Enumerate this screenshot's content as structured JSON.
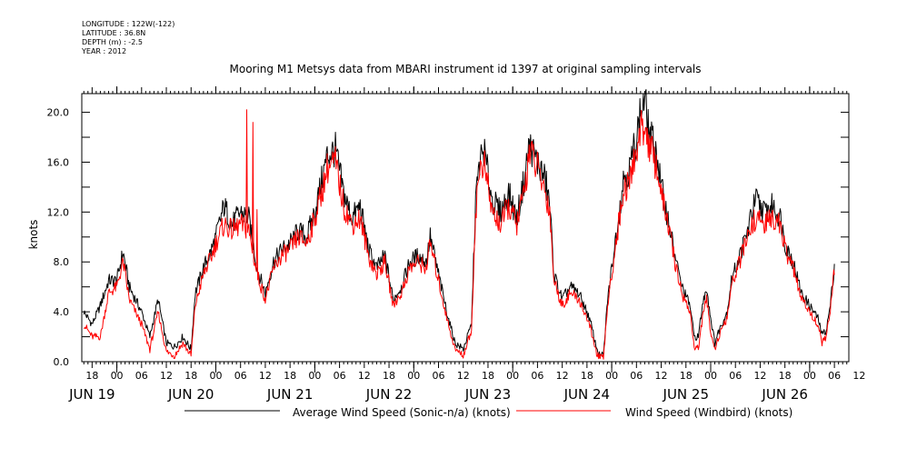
{
  "header": {
    "longitude": "LONGITUDE : 122W(-122)",
    "latitude": "LATITUDE : 36.8N",
    "depth": "DEPTH (m) : -2.5",
    "year": "YEAR : 2012"
  },
  "chart_data": {
    "type": "line",
    "title": "Mooring M1 Metsys data from MBARI instrument id 1397 at original sampling intervals",
    "ylabel": "knots",
    "xlabel": "",
    "ylim": [
      0,
      21.5
    ],
    "yticks": [
      "0.0",
      "4.0",
      "8.0",
      "12.0",
      "16.0",
      "20.0"
    ],
    "xrange_hours": [
      -8.5,
      177.5
    ],
    "x_unit": "hours from JUN 19 00:00",
    "hour_ticks": [
      "18",
      "00",
      "06",
      "12",
      "18",
      "00",
      "06",
      "12",
      "18",
      "00",
      "06",
      "12",
      "18",
      "00",
      "06",
      "12",
      "18",
      "00",
      "06",
      "12",
      "18",
      "00",
      "06",
      "12",
      "18",
      "00",
      "06",
      "12",
      "18",
      "00",
      "06",
      "12"
    ],
    "day_labels": [
      "JUN 19",
      "JUN 20",
      "JUN 21",
      "JUN 22",
      "JUN 23",
      "JUN 24",
      "JUN 25",
      "JUN 26"
    ],
    "grid": false,
    "legend_position": "bottom",
    "series": [
      {
        "name": "Average Wind Speed (Sonic-n/a) (knots)",
        "color": "#000000",
        "keypoints": [
          [
            -8,
            4
          ],
          [
            -6,
            3
          ],
          [
            -4,
            4.5
          ],
          [
            -2,
            6.5
          ],
          [
            0,
            6.5
          ],
          [
            1.5,
            8.8
          ],
          [
            3,
            6
          ],
          [
            6,
            4
          ],
          [
            8,
            2
          ],
          [
            10,
            5
          ],
          [
            12,
            1.5
          ],
          [
            14,
            1.2
          ],
          [
            16,
            2
          ],
          [
            18,
            1
          ],
          [
            19,
            5.5
          ],
          [
            21,
            7.5
          ],
          [
            23,
            9
          ],
          [
            24,
            10
          ],
          [
            26,
            12.5
          ],
          [
            28,
            11
          ],
          [
            30,
            12
          ],
          [
            32,
            11.5
          ],
          [
            34,
            7.5
          ],
          [
            36,
            5.5
          ],
          [
            38,
            8
          ],
          [
            40,
            9
          ],
          [
            42,
            9.5
          ],
          [
            44,
            10.5
          ],
          [
            46,
            10
          ],
          [
            48,
            12
          ],
          [
            50,
            15
          ],
          [
            51,
            16.5
          ],
          [
            53,
            17
          ],
          [
            55,
            13.5
          ],
          [
            57,
            11.5
          ],
          [
            59,
            12.5
          ],
          [
            61,
            9
          ],
          [
            63,
            7.5
          ],
          [
            65,
            8.5
          ],
          [
            67,
            5
          ],
          [
            69,
            6
          ],
          [
            71,
            8
          ],
          [
            73,
            8.5
          ],
          [
            75,
            8
          ],
          [
            76,
            10
          ],
          [
            78,
            7
          ],
          [
            80,
            4
          ],
          [
            82,
            1.5
          ],
          [
            84,
            1
          ],
          [
            85,
            2
          ],
          [
            86,
            3
          ],
          [
            87,
            13
          ],
          [
            88,
            16
          ],
          [
            89,
            17
          ],
          [
            91,
            13
          ],
          [
            93,
            12
          ],
          [
            95,
            13.5
          ],
          [
            97,
            11.5
          ],
          [
            99,
            15
          ],
          [
            100,
            17.5
          ],
          [
            102,
            16
          ],
          [
            104,
            14.5
          ],
          [
            105,
            12.5
          ],
          [
            106,
            7
          ],
          [
            108,
            5
          ],
          [
            110,
            6
          ],
          [
            112,
            5.5
          ],
          [
            114,
            4
          ],
          [
            115,
            3
          ],
          [
            116,
            1.5
          ],
          [
            117,
            0.5
          ],
          [
            118,
            0.5
          ],
          [
            119,
            5
          ],
          [
            121,
            10
          ],
          [
            123,
            15
          ],
          [
            124,
            15
          ],
          [
            126,
            18
          ],
          [
            127,
            20
          ],
          [
            128,
            21
          ],
          [
            129,
            18.5
          ],
          [
            131,
            16.5
          ],
          [
            132,
            14
          ],
          [
            134,
            11
          ],
          [
            135,
            9
          ],
          [
            137,
            6
          ],
          [
            139,
            4.5
          ],
          [
            140,
            2
          ],
          [
            141,
            2
          ],
          [
            142,
            4.5
          ],
          [
            143,
            6
          ],
          [
            144,
            3.5
          ],
          [
            145,
            1.5
          ],
          [
            146,
            2.5
          ],
          [
            148,
            4
          ],
          [
            149,
            6.5
          ],
          [
            151,
            8.5
          ],
          [
            153,
            10.5
          ],
          [
            154,
            12
          ],
          [
            155,
            13
          ],
          [
            157,
            12
          ],
          [
            159,
            12.5
          ],
          [
            161,
            11.5
          ],
          [
            162,
            9.5
          ],
          [
            164,
            8
          ],
          [
            166,
            5.5
          ],
          [
            168,
            4.5
          ],
          [
            170,
            3.5
          ],
          [
            171,
            2.2
          ],
          [
            172,
            2.5
          ],
          [
            173,
            4.5
          ],
          [
            174,
            7.8
          ]
        ]
      },
      {
        "name": "Wind Speed (Windbird) (knots)",
        "color": "#ff0000",
        "keypoints": [
          [
            -8,
            3
          ],
          [
            -6,
            2
          ],
          [
            -4,
            2
          ],
          [
            -2,
            5.5
          ],
          [
            0,
            6
          ],
          [
            1.5,
            8
          ],
          [
            3,
            5
          ],
          [
            6,
            3
          ],
          [
            8,
            1
          ],
          [
            10,
            4
          ],
          [
            12,
            0.8
          ],
          [
            14,
            0.5
          ],
          [
            16,
            1.5
          ],
          [
            18,
            0.5
          ],
          [
            19,
            4.5
          ],
          [
            21,
            7
          ],
          [
            23,
            8.5
          ],
          [
            24,
            9.5
          ],
          [
            26,
            11
          ],
          [
            28,
            10.5
          ],
          [
            30,
            11
          ],
          [
            32,
            10.5
          ],
          [
            34,
            7
          ],
          [
            36,
            5
          ],
          [
            38,
            7.5
          ],
          [
            40,
            8.5
          ],
          [
            42,
            9
          ],
          [
            44,
            10
          ],
          [
            46,
            9.5
          ],
          [
            48,
            11.5
          ],
          [
            50,
            14
          ],
          [
            51,
            15.5
          ],
          [
            53,
            16
          ],
          [
            55,
            12.5
          ],
          [
            57,
            11
          ],
          [
            59,
            11.5
          ],
          [
            61,
            8.5
          ],
          [
            63,
            7
          ],
          [
            65,
            8
          ],
          [
            67,
            4.5
          ],
          [
            69,
            5.5
          ],
          [
            71,
            7.5
          ],
          [
            73,
            8
          ],
          [
            75,
            7.5
          ],
          [
            76,
            9.5
          ],
          [
            78,
            6.5
          ],
          [
            80,
            3.5
          ],
          [
            82,
            1
          ],
          [
            84,
            0.5
          ],
          [
            85,
            1.5
          ],
          [
            86,
            2.5
          ],
          [
            87,
            12
          ],
          [
            88,
            15.5
          ],
          [
            89,
            16
          ],
          [
            91,
            12
          ],
          [
            93,
            11
          ],
          [
            95,
            12.5
          ],
          [
            97,
            11
          ],
          [
            99,
            14
          ],
          [
            100,
            17
          ],
          [
            102,
            15.5
          ],
          [
            104,
            13.5
          ],
          [
            105,
            12
          ],
          [
            106,
            6.5
          ],
          [
            108,
            4.5
          ],
          [
            110,
            5.5
          ],
          [
            112,
            5
          ],
          [
            114,
            3.5
          ],
          [
            115,
            2.5
          ],
          [
            116,
            1
          ],
          [
            117,
            0.3
          ],
          [
            118,
            0.3
          ],
          [
            119,
            4.5
          ],
          [
            121,
            9.5
          ],
          [
            123,
            14
          ],
          [
            124,
            14
          ],
          [
            126,
            17
          ],
          [
            127,
            18.5
          ],
          [
            128,
            19
          ],
          [
            129,
            17.5
          ],
          [
            131,
            15.5
          ],
          [
            132,
            13.5
          ],
          [
            134,
            10.5
          ],
          [
            135,
            8.5
          ],
          [
            137,
            5.5
          ],
          [
            139,
            4
          ],
          [
            140,
            1.2
          ],
          [
            141,
            1
          ],
          [
            142,
            3.5
          ],
          [
            143,
            5
          ],
          [
            144,
            2.5
          ],
          [
            145,
            1
          ],
          [
            146,
            2
          ],
          [
            148,
            3.5
          ],
          [
            149,
            6
          ],
          [
            151,
            8
          ],
          [
            153,
            10
          ],
          [
            154,
            11
          ],
          [
            155,
            11.5
          ],
          [
            157,
            11
          ],
          [
            159,
            11.5
          ],
          [
            161,
            11
          ],
          [
            162,
            9
          ],
          [
            164,
            7.5
          ],
          [
            166,
            5
          ],
          [
            168,
            4
          ],
          [
            170,
            3
          ],
          [
            171,
            1.5
          ],
          [
            172,
            2
          ],
          [
            173,
            4
          ],
          [
            174,
            7.5
          ]
        ],
        "spikes": [
          [
            31.5,
            20.2
          ],
          [
            33,
            19.2
          ],
          [
            34,
            12.2
          ]
        ]
      }
    ]
  }
}
